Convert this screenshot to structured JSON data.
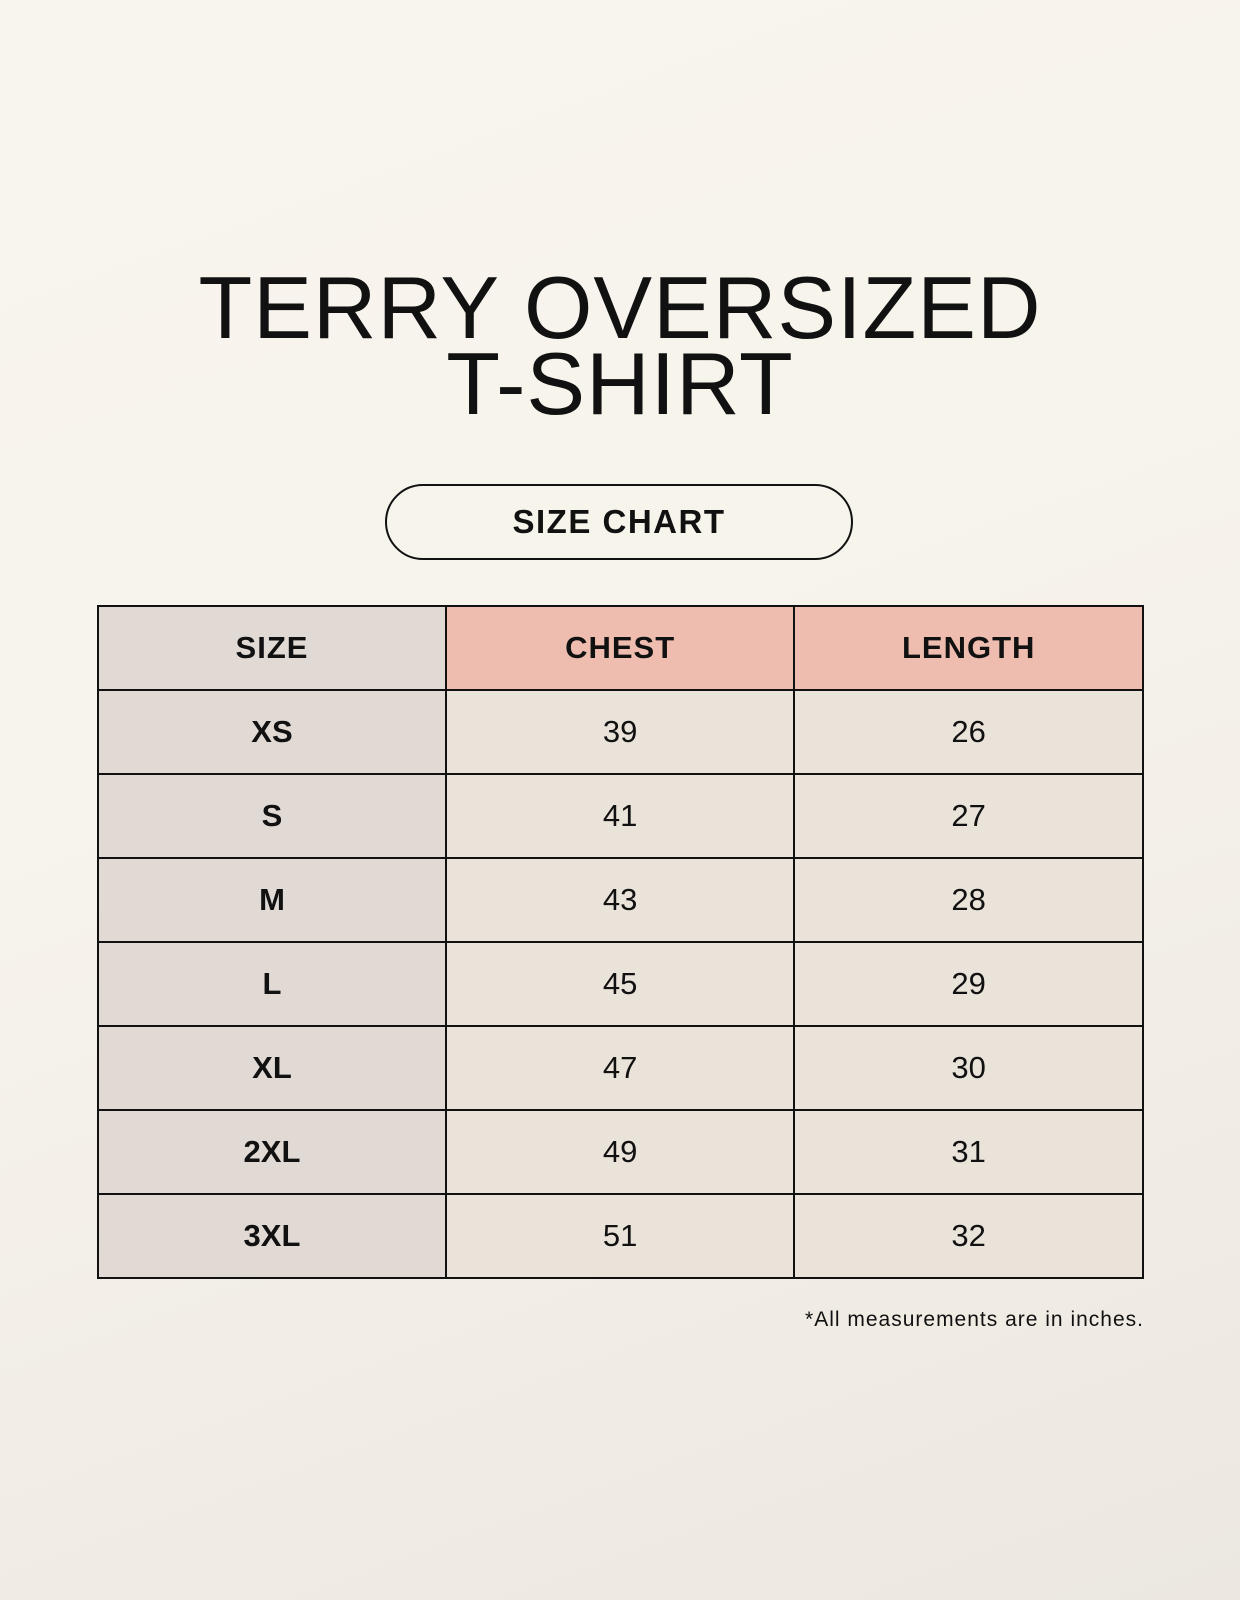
{
  "title_lines": [
    "TERRY OVERSIZED",
    "T-SHIRT"
  ],
  "subtitle": "SIZE CHART",
  "table": {
    "headers": [
      "SIZE",
      "CHEST",
      "LENGTH"
    ],
    "rows": [
      [
        "XS",
        "39",
        "26"
      ],
      [
        "S",
        "41",
        "27"
      ],
      [
        "M",
        "43",
        "28"
      ],
      [
        "L",
        "45",
        "29"
      ],
      [
        "XL",
        "47",
        "30"
      ],
      [
        "2XL",
        "49",
        "31"
      ],
      [
        "3XL",
        "51",
        "32"
      ]
    ]
  },
  "footnote": "*All measurements are in inches.",
  "colors": {
    "size_column": "#e0d9d4",
    "header_accent": "#eebdb0",
    "value_cells": "#eae3da"
  }
}
